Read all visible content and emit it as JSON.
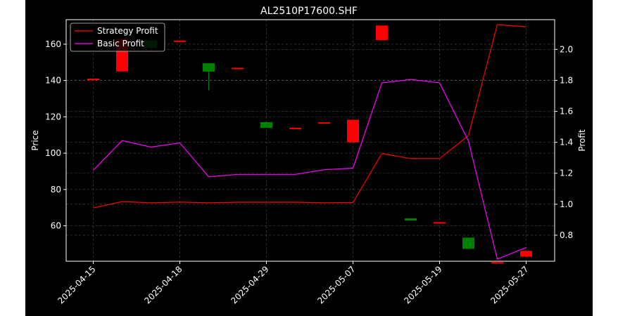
{
  "chart_data": {
    "type": "candlestick+line",
    "title": "AL2510P17600.SHF",
    "ylabel_left": "Price",
    "ylabel_right": "Profit",
    "ylim_left": [
      40.5,
      173.5
    ],
    "ylim_right": [
      0.632,
      2.192
    ],
    "grid": true,
    "grid_style": "dashed",
    "legend_position": "top-left",
    "x_tick_labels": [
      "2025-04-15",
      "2025-04-18",
      "2025-04-29",
      "2025-05-07",
      "2025-05-19",
      "2025-05-27"
    ],
    "x_tick_indices": [
      0,
      3,
      6,
      9,
      12,
      15
    ],
    "y_ticks_left": [
      60,
      80,
      100,
      120,
      140,
      160
    ],
    "y_ticks_right": [
      0.8,
      1.0,
      1.2,
      1.4,
      1.6,
      1.8,
      2.0
    ],
    "candles": [
      {
        "i": 0,
        "open": 141.0,
        "close": 140.2,
        "high": 141.0,
        "low": 140.2,
        "color": "red"
      },
      {
        "i": 1,
        "open": 163.0,
        "close": 145.0,
        "high": 163.0,
        "low": 145.0,
        "color": "red"
      },
      {
        "i": 2,
        "open": 158.0,
        "close": 162.0,
        "high": 164.0,
        "low": 156.0,
        "color": "green"
      },
      {
        "i": 3,
        "open": 162.0,
        "close": 162.0,
        "high": 162.0,
        "low": 162.0,
        "color": "red"
      },
      {
        "i": 4,
        "open": 144.9,
        "close": 149.5,
        "high": 149.5,
        "low": 134.5,
        "color": "green"
      },
      {
        "i": 5,
        "open": 147.0,
        "close": 147.0,
        "high": 147.0,
        "low": 147.0,
        "color": "red"
      },
      {
        "i": 6,
        "open": 113.9,
        "close": 117.1,
        "high": 117.1,
        "low": 113.9,
        "color": "green"
      },
      {
        "i": 7,
        "open": 114.0,
        "close": 114.0,
        "high": 114.0,
        "low": 114.0,
        "color": "red"
      },
      {
        "i": 8,
        "open": 117.0,
        "close": 117.0,
        "high": 117.0,
        "low": 117.0,
        "color": "red"
      },
      {
        "i": 9,
        "open": 118.4,
        "close": 106.0,
        "high": 118.4,
        "low": 106.0,
        "color": "red"
      },
      {
        "i": 10,
        "open": 170.3,
        "close": 162.3,
        "high": 170.3,
        "low": 162.3,
        "color": "red"
      },
      {
        "i": 11,
        "open": 62.9,
        "close": 64.1,
        "high": 64.1,
        "low": 62.9,
        "color": "green"
      },
      {
        "i": 12,
        "open": 62.0,
        "close": 62.0,
        "high": 62.0,
        "low": 62.0,
        "color": "red"
      },
      {
        "i": 13,
        "open": 47.3,
        "close": 53.5,
        "high": 53.5,
        "low": 47.3,
        "color": "green"
      },
      {
        "i": 14,
        "open": 40.0,
        "close": 40.0,
        "high": 40.0,
        "low": 40.0,
        "color": "red"
      },
      {
        "i": 15,
        "open": 46.2,
        "close": 43.0,
        "high": 46.2,
        "low": 43.0,
        "color": "red"
      }
    ],
    "series": [
      {
        "name": "Strategy Profit",
        "color": "#ff0000",
        "values": [
          0.976,
          1.017,
          1.009,
          1.014,
          1.009,
          1.013,
          1.013,
          1.013,
          1.009,
          1.011,
          1.327,
          1.295,
          1.295,
          1.443,
          2.16,
          2.146
        ]
      },
      {
        "name": "Basic Profit",
        "color": "#ff00ff",
        "values": [
          1.219,
          1.411,
          1.369,
          1.396,
          1.177,
          1.193,
          1.193,
          1.193,
          1.223,
          1.233,
          1.784,
          1.806,
          1.784,
          1.409,
          0.645,
          0.721
        ]
      }
    ]
  }
}
